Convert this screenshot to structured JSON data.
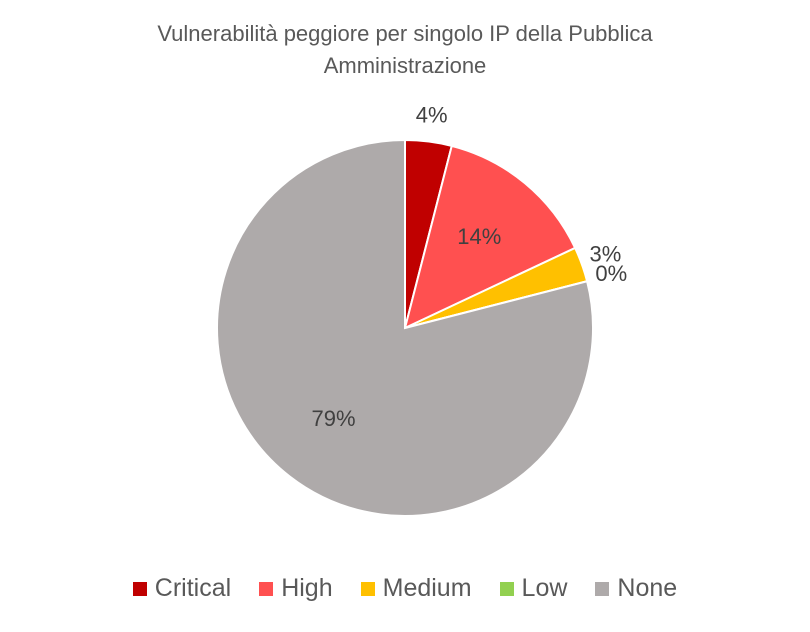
{
  "chart_data": {
    "type": "pie",
    "title": "Vulnerabilità peggiore per singolo IP della Pubblica Amministrazione",
    "categories": [
      "Critical",
      "High",
      "Medium",
      "Low",
      "None"
    ],
    "values": [
      4,
      14,
      3,
      0,
      79
    ],
    "value_labels": [
      "4%",
      "14%",
      "3%",
      "0%",
      "79%"
    ],
    "colors": [
      "#c00000",
      "#ff5050",
      "#ffc000",
      "#92d050",
      "#aeaaaa"
    ]
  }
}
